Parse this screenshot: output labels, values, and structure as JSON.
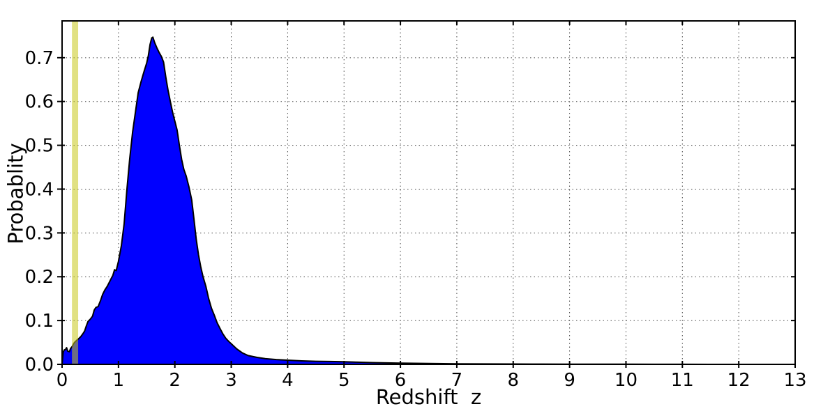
{
  "chart_data": {
    "type": "area",
    "title": "",
    "xlabel": "Redshift  z",
    "ylabel": "Probablity",
    "xlim": [
      0,
      13
    ],
    "ylim": [
      0,
      0.784
    ],
    "xticks": [
      0,
      1,
      2,
      3,
      4,
      5,
      6,
      7,
      8,
      9,
      10,
      11,
      12,
      13
    ],
    "xtick_labels": [
      "0",
      "1",
      "2",
      "3",
      "4",
      "5",
      "6",
      "7",
      "8",
      "9",
      "10",
      "11",
      "12",
      "13"
    ],
    "yticks": [
      0.0,
      0.1,
      0.2,
      0.3,
      0.4,
      0.5,
      0.6,
      0.7
    ],
    "ytick_labels": [
      "0.0",
      "0.1",
      "0.2",
      "0.3",
      "0.4",
      "0.5",
      "0.6",
      "0.7"
    ],
    "grid": "dotted",
    "grid_color": "#444444",
    "frame_color": "#000000",
    "series": [
      {
        "name": "redshift-probability-density",
        "fill_color": "#0000ff",
        "edge_color": "#000000",
        "x": [
          0.0,
          0.02,
          0.04,
          0.06,
          0.08,
          0.1,
          0.13,
          0.15,
          0.18,
          0.2,
          0.22,
          0.26,
          0.29,
          0.33,
          0.37,
          0.4,
          0.43,
          0.46,
          0.5,
          0.54,
          0.57,
          0.6,
          0.64,
          0.68,
          0.72,
          0.76,
          0.8,
          0.84,
          0.88,
          0.9,
          0.93,
          0.96,
          1.0,
          1.05,
          1.1,
          1.15,
          1.2,
          1.25,
          1.3,
          1.35,
          1.4,
          1.45,
          1.5,
          1.53,
          1.56,
          1.59,
          1.61,
          1.64,
          1.68,
          1.72,
          1.76,
          1.8,
          1.84,
          1.88,
          1.92,
          1.96,
          2.0,
          2.04,
          2.08,
          2.12,
          2.16,
          2.2,
          2.25,
          2.3,
          2.34,
          2.38,
          2.42,
          2.46,
          2.5,
          2.55,
          2.6,
          2.65,
          2.7,
          2.75,
          2.8,
          2.85,
          2.9,
          2.95,
          3.0,
          3.1,
          3.2,
          3.3,
          3.45,
          3.6,
          3.8,
          4.0,
          4.25,
          4.5,
          4.75,
          5.0,
          5.25,
          5.5,
          6.0,
          6.5,
          7.0,
          7.5,
          8.0,
          8.5,
          9.0,
          9.5,
          10.0,
          10.5,
          11.0,
          11.5,
          12.0,
          13.0
        ],
        "y": [
          0.0,
          0.028,
          0.033,
          0.034,
          0.038,
          0.03,
          0.029,
          0.036,
          0.041,
          0.046,
          0.05,
          0.055,
          0.058,
          0.063,
          0.07,
          0.076,
          0.088,
          0.098,
          0.103,
          0.11,
          0.124,
          0.13,
          0.132,
          0.145,
          0.16,
          0.17,
          0.178,
          0.188,
          0.198,
          0.203,
          0.216,
          0.214,
          0.235,
          0.27,
          0.32,
          0.4,
          0.47,
          0.53,
          0.575,
          0.62,
          0.645,
          0.667,
          0.688,
          0.705,
          0.73,
          0.745,
          0.747,
          0.735,
          0.723,
          0.712,
          0.703,
          0.69,
          0.655,
          0.625,
          0.6,
          0.575,
          0.555,
          0.535,
          0.5,
          0.468,
          0.445,
          0.43,
          0.405,
          0.375,
          0.33,
          0.285,
          0.25,
          0.222,
          0.2,
          0.178,
          0.15,
          0.128,
          0.112,
          0.095,
          0.082,
          0.07,
          0.06,
          0.053,
          0.047,
          0.035,
          0.026,
          0.02,
          0.016,
          0.013,
          0.011,
          0.0095,
          0.008,
          0.007,
          0.0065,
          0.006,
          0.005,
          0.004,
          0.0027,
          0.002,
          0.0013,
          0.001,
          0.0008,
          0.0006,
          0.0005,
          0.0004,
          0.0003,
          0.0002,
          0.0001,
          0.0,
          0.0,
          0.0
        ]
      }
    ],
    "marker_band": {
      "name": "redshift-marker-band",
      "x_start": 0.175,
      "x_end": 0.285,
      "color": "#c8c81e",
      "alpha": 0.55
    },
    "peak": {
      "x": 1.61,
      "y": 0.747
    }
  }
}
